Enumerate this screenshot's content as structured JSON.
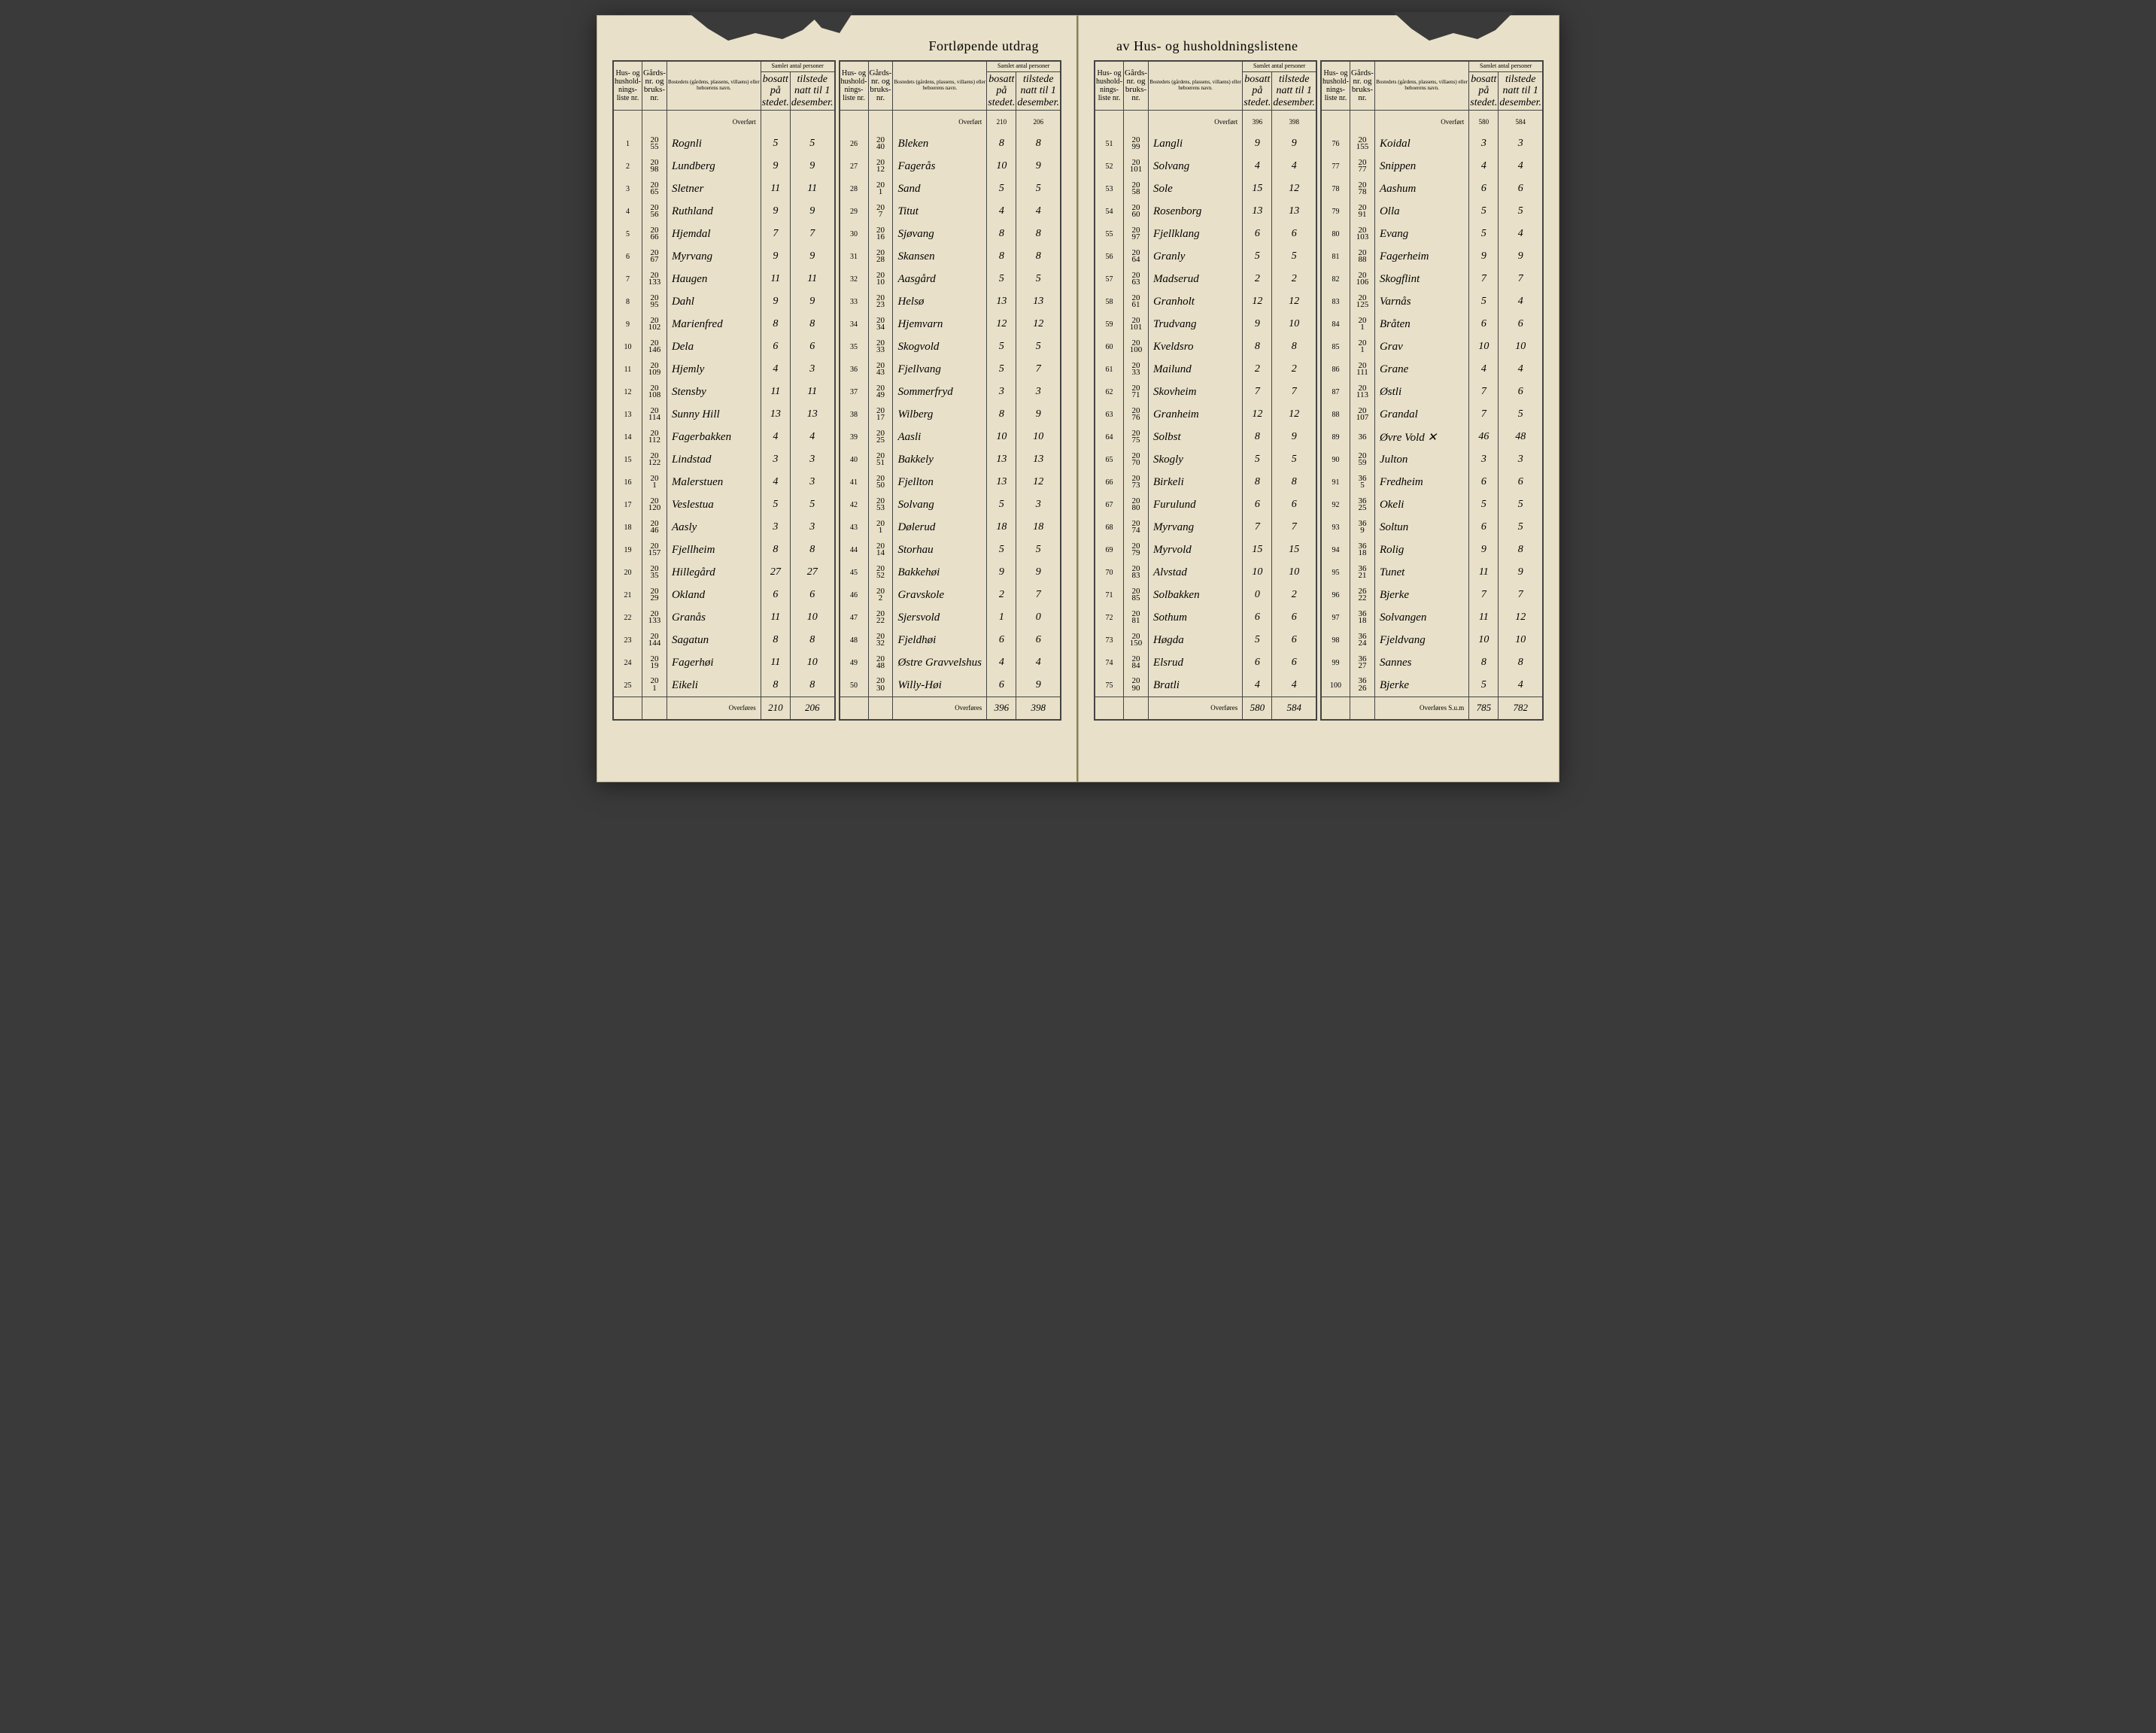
{
  "title_left": "Fortløpende utdrag",
  "title_right": "av Hus- og husholdningslistene",
  "headers": {
    "h1": "Hus- og hushold-nings-liste nr.",
    "h2": "Gårds-nr. og bruks-nr.",
    "h3": "Bostedets (gårdens, plassens, villaens) eller beboerens navn.",
    "h4_group": "Samlet antal personer",
    "h4a": "bosatt på stedet.",
    "h4b": "tilstede natt til 1 desember.",
    "overfort": "Overført",
    "overfores": "Overføres",
    "sum": "Overføres S.u.m"
  },
  "blocks": [
    {
      "carry_in": [
        "",
        ""
      ],
      "rows": [
        {
          "n": "1",
          "g": [
            "20",
            "55"
          ],
          "name": "Rognli",
          "b": "5",
          "t": "5"
        },
        {
          "n": "2",
          "g": [
            "20",
            "98"
          ],
          "name": "Lundberg",
          "b": "9",
          "t": "9"
        },
        {
          "n": "3",
          "g": [
            "20",
            "65"
          ],
          "name": "Sletner",
          "b": "11",
          "t": "11"
        },
        {
          "n": "4",
          "g": [
            "20",
            "56"
          ],
          "name": "Ruthland",
          "b": "9",
          "t": "9"
        },
        {
          "n": "5",
          "g": [
            "20",
            "66"
          ],
          "name": "Hjemdal",
          "b": "7",
          "t": "7"
        },
        {
          "n": "6",
          "g": [
            "20",
            "67"
          ],
          "name": "Myrvang",
          "b": "9",
          "t": "9"
        },
        {
          "n": "7",
          "g": [
            "20",
            "133"
          ],
          "name": "Haugen",
          "b": "11",
          "t": "11"
        },
        {
          "n": "8",
          "g": [
            "20",
            "95"
          ],
          "name": "Dahl",
          "b": "9",
          "t": "9"
        },
        {
          "n": "9",
          "g": [
            "20",
            "102"
          ],
          "name": "Marienfred",
          "b": "8",
          "t": "8"
        },
        {
          "n": "10",
          "g": [
            "20",
            "146"
          ],
          "name": "Dela",
          "b": "6",
          "t": "6"
        },
        {
          "n": "11",
          "g": [
            "20",
            "109"
          ],
          "name": "Hjemly",
          "b": "4",
          "t": "3"
        },
        {
          "n": "12",
          "g": [
            "20",
            "108"
          ],
          "name": "Stensby",
          "b": "11",
          "t": "11"
        },
        {
          "n": "13",
          "g": [
            "20",
            "114"
          ],
          "name": "Sunny Hill",
          "b": "13",
          "t": "13"
        },
        {
          "n": "14",
          "g": [
            "20",
            "112"
          ],
          "name": "Fagerbakken",
          "b": "4",
          "t": "4"
        },
        {
          "n": "15",
          "g": [
            "20",
            "122"
          ],
          "name": "Lindstad",
          "b": "3",
          "t": "3"
        },
        {
          "n": "16",
          "g": [
            "20",
            "1"
          ],
          "name": "Malerstuen",
          "b": "4",
          "t": "3"
        },
        {
          "n": "17",
          "g": [
            "20",
            "120"
          ],
          "name": "Veslestua",
          "b": "5",
          "t": "5"
        },
        {
          "n": "18",
          "g": [
            "20",
            "46"
          ],
          "name": "Aasly",
          "b": "3",
          "t": "3"
        },
        {
          "n": "19",
          "g": [
            "20",
            "157"
          ],
          "name": "Fjellheim",
          "b": "8",
          "t": "8"
        },
        {
          "n": "20",
          "g": [
            "20",
            "35"
          ],
          "name": "Hillegård",
          "b": "27",
          "t": "27"
        },
        {
          "n": "21",
          "g": [
            "20",
            "29"
          ],
          "name": "Okland",
          "b": "6",
          "t": "6"
        },
        {
          "n": "22",
          "g": [
            "20",
            "133"
          ],
          "name": "Granås",
          "b": "11",
          "t": "10"
        },
        {
          "n": "23",
          "g": [
            "20",
            "144"
          ],
          "name": "Sagatun",
          "b": "8",
          "t": "8"
        },
        {
          "n": "24",
          "g": [
            "20",
            "19"
          ],
          "name": "Fagerhøi",
          "b": "11",
          "t": "10"
        },
        {
          "n": "25",
          "g": [
            "20",
            "1"
          ],
          "name": "Eikeli",
          "b": "8",
          "t": "8"
        }
      ],
      "carry_out": [
        "210",
        "206"
      ]
    },
    {
      "carry_in": [
        "210",
        "206"
      ],
      "rows": [
        {
          "n": "26",
          "g": [
            "20",
            "40"
          ],
          "name": "Bleken",
          "b": "8",
          "t": "8"
        },
        {
          "n": "27",
          "g": [
            "20",
            "12"
          ],
          "name": "Fagerås",
          "b": "10",
          "t": "9"
        },
        {
          "n": "28",
          "g": [
            "20",
            "1"
          ],
          "name": "Sand",
          "b": "5",
          "t": "5"
        },
        {
          "n": "29",
          "g": [
            "20",
            "7"
          ],
          "name": "Titut",
          "b": "4",
          "t": "4"
        },
        {
          "n": "30",
          "g": [
            "20",
            "16"
          ],
          "name": "Sjøvang",
          "b": "8",
          "t": "8"
        },
        {
          "n": "31",
          "g": [
            "20",
            "28"
          ],
          "name": "Skansen",
          "b": "8",
          "t": "8"
        },
        {
          "n": "32",
          "g": [
            "20",
            "10"
          ],
          "name": "Aasgård",
          "b": "5",
          "t": "5"
        },
        {
          "n": "33",
          "g": [
            "20",
            "23"
          ],
          "name": "Helsø",
          "b": "13",
          "t": "13"
        },
        {
          "n": "34",
          "g": [
            "20",
            "34"
          ],
          "name": "Hjemvarn",
          "b": "12",
          "t": "12"
        },
        {
          "n": "35",
          "g": [
            "20",
            "33"
          ],
          "name": "Skogvold",
          "b": "5",
          "t": "5"
        },
        {
          "n": "36",
          "g": [
            "20",
            "43"
          ],
          "name": "Fjellvang",
          "b": "5",
          "t": "7"
        },
        {
          "n": "37",
          "g": [
            "20",
            "49"
          ],
          "name": "Sommerfryd",
          "b": "3",
          "t": "3"
        },
        {
          "n": "38",
          "g": [
            "20",
            "17"
          ],
          "name": "Wilberg",
          "b": "8",
          "t": "9"
        },
        {
          "n": "39",
          "g": [
            "20",
            "25"
          ],
          "name": "Aasli",
          "b": "10",
          "t": "10"
        },
        {
          "n": "40",
          "g": [
            "20",
            "51"
          ],
          "name": "Bakkely",
          "b": "13",
          "t": "13"
        },
        {
          "n": "41",
          "g": [
            "20",
            "50"
          ],
          "name": "Fjellton",
          "b": "13",
          "t": "12"
        },
        {
          "n": "42",
          "g": [
            "20",
            "53"
          ],
          "name": "Solvang",
          "b": "5",
          "t": "3"
        },
        {
          "n": "43",
          "g": [
            "20",
            "1"
          ],
          "name": "Dølerud",
          "b": "18",
          "t": "18"
        },
        {
          "n": "44",
          "g": [
            "20",
            "14"
          ],
          "name": "Storhau",
          "b": "5",
          "t": "5"
        },
        {
          "n": "45",
          "g": [
            "20",
            "52"
          ],
          "name": "Bakkehøi",
          "b": "9",
          "t": "9"
        },
        {
          "n": "46",
          "g": [
            "20",
            "2"
          ],
          "name": "Gravskole",
          "b": "2",
          "t": "7"
        },
        {
          "n": "47",
          "g": [
            "20",
            "22"
          ],
          "name": "Sjersvold",
          "b": "1",
          "t": "0"
        },
        {
          "n": "48",
          "g": [
            "20",
            "32"
          ],
          "name": "Fjeldhøi",
          "b": "6",
          "t": "6"
        },
        {
          "n": "49",
          "g": [
            "20",
            "48"
          ],
          "name": "Østre Gravvelshus",
          "b": "4",
          "t": "4"
        },
        {
          "n": "50",
          "g": [
            "20",
            "30"
          ],
          "name": "Willy-Høi",
          "b": "6",
          "t": "9"
        }
      ],
      "carry_out": [
        "396",
        "398"
      ]
    },
    {
      "carry_in": [
        "396",
        "398"
      ],
      "rows": [
        {
          "n": "51",
          "g": [
            "20",
            "99"
          ],
          "name": "Langli",
          "b": "9",
          "t": "9"
        },
        {
          "n": "52",
          "g": [
            "20",
            "101"
          ],
          "name": "Solvang",
          "b": "4",
          "t": "4"
        },
        {
          "n": "53",
          "g": [
            "20",
            "58"
          ],
          "name": "Sole",
          "b": "15",
          "t": "12"
        },
        {
          "n": "54",
          "g": [
            "20",
            "60"
          ],
          "name": "Rosenborg",
          "b": "13",
          "t": "13"
        },
        {
          "n": "55",
          "g": [
            "20",
            "97"
          ],
          "name": "Fjellklang",
          "b": "6",
          "t": "6"
        },
        {
          "n": "56",
          "g": [
            "20",
            "64"
          ],
          "name": "Granly",
          "b": "5",
          "t": "5"
        },
        {
          "n": "57",
          "g": [
            "20",
            "63"
          ],
          "name": "Madserud",
          "b": "2",
          "t": "2"
        },
        {
          "n": "58",
          "g": [
            "20",
            "61"
          ],
          "name": "Granholt",
          "b": "12",
          "t": "12"
        },
        {
          "n": "59",
          "g": [
            "20",
            "101"
          ],
          "name": "Trudvang",
          "b": "9",
          "t": "10"
        },
        {
          "n": "60",
          "g": [
            "20",
            "100"
          ],
          "name": "Kveldsro",
          "b": "8",
          "t": "8"
        },
        {
          "n": "61",
          "g": [
            "20",
            "33"
          ],
          "name": "Mailund",
          "b": "2",
          "t": "2"
        },
        {
          "n": "62",
          "g": [
            "20",
            "71"
          ],
          "name": "Skovheim",
          "b": "7",
          "t": "7"
        },
        {
          "n": "63",
          "g": [
            "20",
            "76"
          ],
          "name": "Granheim",
          "b": "12",
          "t": "12"
        },
        {
          "n": "64",
          "g": [
            "20",
            "75"
          ],
          "name": "Solbst",
          "b": "8",
          "t": "9"
        },
        {
          "n": "65",
          "g": [
            "20",
            "70"
          ],
          "name": "Skogly",
          "b": "5",
          "t": "5"
        },
        {
          "n": "66",
          "g": [
            "20",
            "73"
          ],
          "name": "Birkeli",
          "b": "8",
          "t": "8"
        },
        {
          "n": "67",
          "g": [
            "20",
            "80"
          ],
          "name": "Furulund",
          "b": "6",
          "t": "6"
        },
        {
          "n": "68",
          "g": [
            "20",
            "74"
          ],
          "name": "Myrvang",
          "b": "7",
          "t": "7"
        },
        {
          "n": "69",
          "g": [
            "20",
            "79"
          ],
          "name": "Myrvold",
          "b": "15",
          "t": "15"
        },
        {
          "n": "70",
          "g": [
            "20",
            "83"
          ],
          "name": "Alvstad",
          "b": "10",
          "t": "10"
        },
        {
          "n": "71",
          "g": [
            "20",
            "85"
          ],
          "name": "Solbakken",
          "b": "0",
          "t": "2"
        },
        {
          "n": "72",
          "g": [
            "20",
            "81"
          ],
          "name": "Sothum",
          "b": "6",
          "t": "6"
        },
        {
          "n": "73",
          "g": [
            "20",
            "150"
          ],
          "name": "Høgda",
          "b": "5",
          "t": "6"
        },
        {
          "n": "74",
          "g": [
            "20",
            "84"
          ],
          "name": "Elsrud",
          "b": "6",
          "t": "6"
        },
        {
          "n": "75",
          "g": [
            "20",
            "90"
          ],
          "name": "Bratli",
          "b": "4",
          "t": "4"
        }
      ],
      "carry_out": [
        "580",
        "584"
      ]
    },
    {
      "carry_in": [
        "580",
        "584"
      ],
      "rows": [
        {
          "n": "76",
          "g": [
            "20",
            "155"
          ],
          "name": "Koidal",
          "b": "3",
          "t": "3"
        },
        {
          "n": "77",
          "g": [
            "20",
            "77"
          ],
          "name": "Snippen",
          "b": "4",
          "t": "4"
        },
        {
          "n": "78",
          "g": [
            "20",
            "78"
          ],
          "name": "Aashum",
          "b": "6",
          "t": "6"
        },
        {
          "n": "79",
          "g": [
            "20",
            "91"
          ],
          "name": "Olla",
          "b": "5",
          "t": "5"
        },
        {
          "n": "80",
          "g": [
            "20",
            "103"
          ],
          "name": "Evang",
          "b": "5",
          "t": "4"
        },
        {
          "n": "81",
          "g": [
            "20",
            "88"
          ],
          "name": "Fagerheim",
          "b": "9",
          "t": "9"
        },
        {
          "n": "82",
          "g": [
            "20",
            "106"
          ],
          "name": "Skogflint",
          "b": "7",
          "t": "7"
        },
        {
          "n": "83",
          "g": [
            "20",
            "125"
          ],
          "name": "Varnås",
          "b": "5",
          "t": "4"
        },
        {
          "n": "84",
          "g": [
            "20",
            "1"
          ],
          "name": "Bråten",
          "b": "6",
          "t": "6"
        },
        {
          "n": "85",
          "g": [
            "20",
            "1"
          ],
          "name": "Grav",
          "b": "10",
          "t": "10"
        },
        {
          "n": "86",
          "g": [
            "20",
            "111"
          ],
          "name": "Grane",
          "b": "4",
          "t": "4"
        },
        {
          "n": "87",
          "g": [
            "20",
            "113"
          ],
          "name": "Østli",
          "b": "7",
          "t": "6"
        },
        {
          "n": "88",
          "g": [
            "20",
            "107"
          ],
          "name": "Grandal",
          "b": "7",
          "t": "5"
        },
        {
          "n": "89",
          "g": [
            "",
            "36"
          ],
          "name": "Øvre Vold ✕",
          "b": "46",
          "t": "48"
        },
        {
          "n": "90",
          "g": [
            "20",
            "59"
          ],
          "name": "Julton",
          "b": "3",
          "t": "3"
        },
        {
          "n": "91",
          "g": [
            "36",
            "5"
          ],
          "name": "Fredheim",
          "b": "6",
          "t": "6"
        },
        {
          "n": "92",
          "g": [
            "36",
            "25"
          ],
          "name": "Okeli",
          "b": "5",
          "t": "5"
        },
        {
          "n": "93",
          "g": [
            "36",
            "9"
          ],
          "name": "Soltun",
          "b": "6",
          "t": "5"
        },
        {
          "n": "94",
          "g": [
            "36",
            "18"
          ],
          "name": "Rolig",
          "b": "9",
          "t": "8"
        },
        {
          "n": "95",
          "g": [
            "36",
            "21"
          ],
          "name": "Tunet",
          "b": "11",
          "t": "9"
        },
        {
          "n": "96",
          "g": [
            "26",
            "22"
          ],
          "name": "Bjerke",
          "b": "7",
          "t": "7"
        },
        {
          "n": "97",
          "g": [
            "36",
            "18"
          ],
          "name": "Solvangen",
          "b": "11",
          "t": "12"
        },
        {
          "n": "98",
          "g": [
            "36",
            "24"
          ],
          "name": "Fjeldvang",
          "b": "10",
          "t": "10"
        },
        {
          "n": "99",
          "g": [
            "36",
            "27"
          ],
          "name": "Sannes",
          "b": "8",
          "t": "8"
        },
        {
          "n": "100",
          "g": [
            "36",
            "26"
          ],
          "name": "Bjerke",
          "b": "5",
          "t": "4"
        }
      ],
      "carry_out": [
        "785",
        "782"
      ],
      "is_sum": true
    }
  ]
}
